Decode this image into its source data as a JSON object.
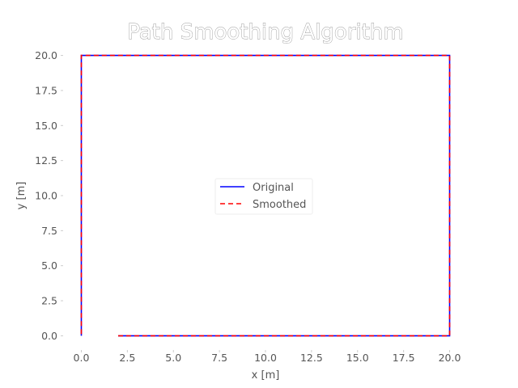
{
  "chart_data": {
    "type": "line",
    "title": "Path Smoothing Algorithm",
    "xlabel": "x [m]",
    "ylabel": "y [m]",
    "xlim": [
      -0.9,
      20.9
    ],
    "ylim": [
      -0.9,
      20.9
    ],
    "x_ticks": [
      "0.0",
      "2.5",
      "5.0",
      "7.5",
      "10.0",
      "12.5",
      "15.0",
      "17.5",
      "20.0"
    ],
    "y_ticks": [
      "0.0",
      "2.5",
      "5.0",
      "7.5",
      "10.0",
      "12.5",
      "15.0",
      "17.5",
      "20.0"
    ],
    "grid": false,
    "legend_position": "center",
    "series": [
      {
        "name": "Original",
        "color": "#0000ff",
        "style": "solid",
        "x": [
          2,
          20,
          20,
          0,
          0
        ],
        "y": [
          0,
          0,
          20,
          20,
          0
        ]
      },
      {
        "name": "Smoothed",
        "color": "#ff0000",
        "style": "dashed",
        "x": [
          2,
          20,
          20,
          0,
          0
        ],
        "y": [
          0,
          0,
          20,
          20,
          0
        ]
      }
    ]
  }
}
